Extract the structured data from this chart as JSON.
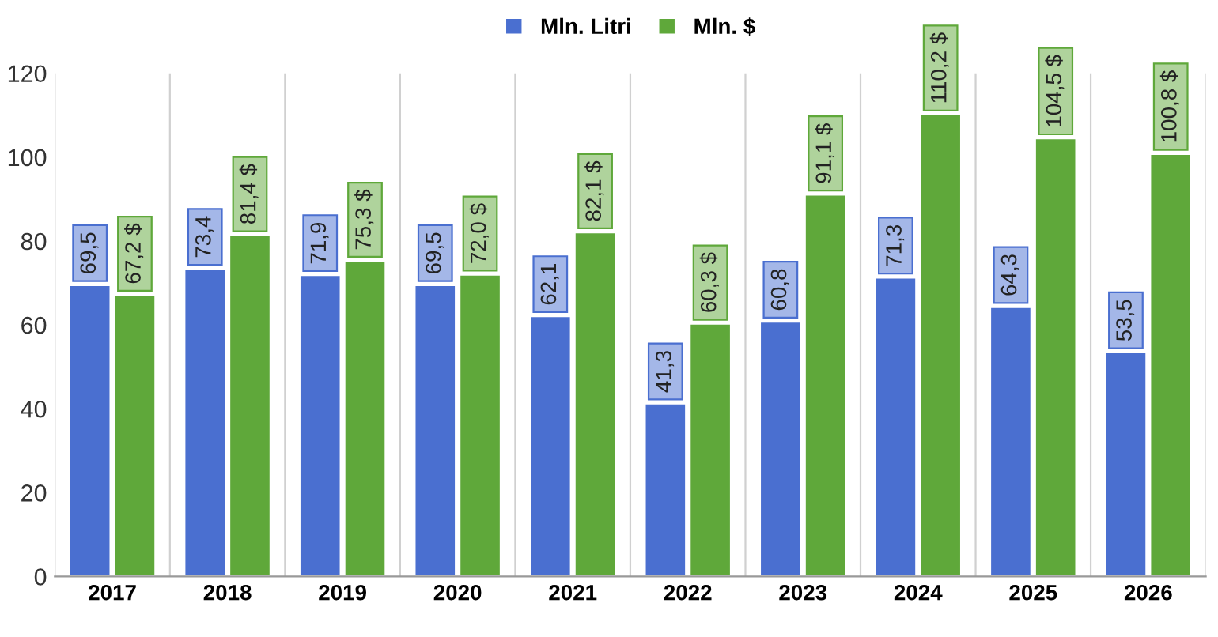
{
  "chart_data": {
    "type": "bar",
    "categories": [
      "2017",
      "2018",
      "2019",
      "2020",
      "2021",
      "2022",
      "2023",
      "2024",
      "2025",
      "2026"
    ],
    "series": [
      {
        "name": "Mln. Litri",
        "color": "#4a6fd0",
        "values": [
          69.5,
          73.4,
          71.9,
          69.5,
          62.1,
          41.3,
          60.8,
          71.3,
          64.3,
          53.5
        ],
        "value_labels": [
          "69,5",
          "73,4",
          "71,9",
          "69,5",
          "62,1",
          "41,3",
          "60,8",
          "71,3",
          "64,3",
          "53,5"
        ]
      },
      {
        "name": "Mln. $",
        "color": "#5fa83a",
        "values": [
          67.2,
          81.4,
          75.3,
          72.0,
          82.1,
          60.3,
          91.1,
          110.2,
          104.5,
          100.8
        ],
        "value_labels": [
          "67,2 $",
          "81,4 $",
          "75,3 $",
          "72,0 $",
          "82,1 $",
          "60,3 $",
          "91,1 $",
          "110,2 $",
          "104,5 $",
          "100,8 $"
        ]
      }
    ],
    "ylim": [
      0,
      120
    ],
    "yticks": [
      0,
      20,
      40,
      60,
      80,
      100,
      120
    ],
    "grid": "x",
    "legend": "top"
  }
}
